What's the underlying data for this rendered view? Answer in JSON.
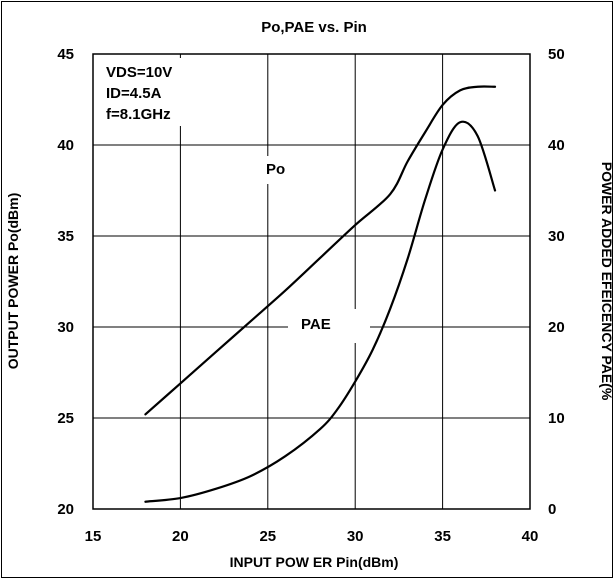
{
  "chart_data": {
    "type": "line",
    "title": "Po,PAE vs. Pin",
    "xlabel": "INPUT POW ER Pin(dBm)",
    "ylabel": "OUTPUT POWER Po(dBm)",
    "y2label": "POWER ADDED EFEICENCY PAE(%",
    "xlim": [
      15,
      40
    ],
    "ylim": [
      20,
      45
    ],
    "y2lim": [
      0,
      50
    ],
    "xticks": [
      "15",
      "20",
      "25",
      "30",
      "35",
      "40"
    ],
    "yticks": [
      "20",
      "25",
      "30",
      "35",
      "40",
      "45"
    ],
    "y2ticks": [
      "0",
      "10",
      "20",
      "30",
      "40",
      "50"
    ],
    "grid": true,
    "conditions": [
      "VDS=10V",
      "ID=4.5A",
      "f=8.1GHz"
    ],
    "series": [
      {
        "name": "Po",
        "axis": "left",
        "x": [
          18,
          20,
          22,
          24,
          26,
          28,
          30,
          32,
          33,
          34,
          35,
          36,
          37,
          38
        ],
        "y": [
          25.2,
          26.9,
          28.6,
          30.3,
          32.0,
          33.8,
          35.6,
          37.3,
          39.1,
          40.7,
          42.2,
          43.0,
          43.2,
          43.2
        ]
      },
      {
        "name": "PAE",
        "axis": "right",
        "x": [
          18,
          20,
          22,
          24,
          26,
          28,
          29,
          30,
          31,
          32,
          33,
          34,
          35,
          36,
          37,
          38
        ],
        "y": [
          0.8,
          1.2,
          2.2,
          3.6,
          5.8,
          8.8,
          11.0,
          14.0,
          17.5,
          22.0,
          27.5,
          34.0,
          39.5,
          42.5,
          41.0,
          35.0
        ]
      }
    ]
  }
}
